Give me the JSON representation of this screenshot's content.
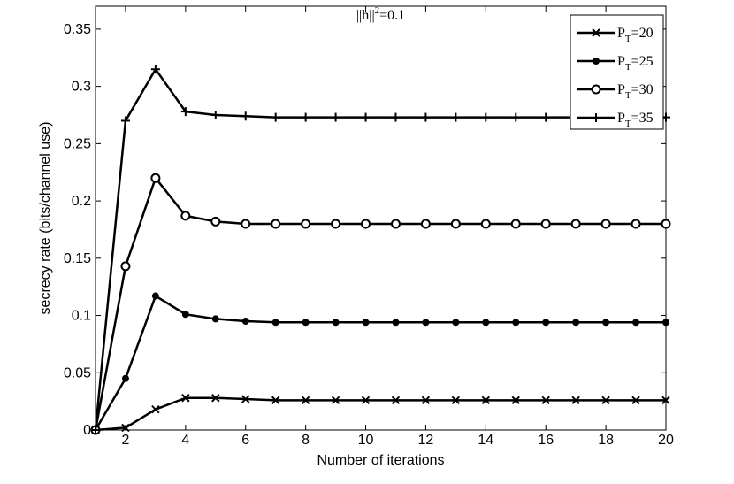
{
  "chart_data": {
    "type": "line",
    "title": "||h||²=0.1",
    "title_main": "||h||",
    "title_sup": "2",
    "title_rest": "=0.1",
    "xlabel": "Number of iterations",
    "ylabel": "secrecy rate (bits/channel use)",
    "xlim": [
      1,
      20
    ],
    "ylim": [
      0,
      0.37
    ],
    "xticks": [
      2,
      4,
      6,
      8,
      10,
      12,
      14,
      16,
      18,
      20
    ],
    "yticks": [
      0,
      0.05,
      0.1,
      0.15,
      0.2,
      0.25,
      0.3,
      0.35
    ],
    "ytick_labels": [
      "0",
      "0.05",
      "0.1",
      "0.15",
      "0.2",
      "0.25",
      "0.3",
      "0.35"
    ],
    "grid": false,
    "legend_position": "top-right",
    "x": [
      1,
      2,
      3,
      4,
      5,
      6,
      7,
      8,
      9,
      10,
      11,
      12,
      13,
      14,
      15,
      16,
      17,
      18,
      19,
      20
    ],
    "series": [
      {
        "name": "P_T=20",
        "legend_main": "P",
        "legend_sub": "T",
        "legend_rest": "=20",
        "marker": "x",
        "values": [
          0,
          0.002,
          0.018,
          0.028,
          0.028,
          0.027,
          0.026,
          0.026,
          0.026,
          0.026,
          0.026,
          0.026,
          0.026,
          0.026,
          0.026,
          0.026,
          0.026,
          0.026,
          0.026,
          0.026
        ]
      },
      {
        "name": "P_T=25",
        "legend_main": "P",
        "legend_sub": "T",
        "legend_rest": "=25",
        "marker": "dot",
        "values": [
          0,
          0.045,
          0.117,
          0.101,
          0.097,
          0.095,
          0.094,
          0.094,
          0.094,
          0.094,
          0.094,
          0.094,
          0.094,
          0.094,
          0.094,
          0.094,
          0.094,
          0.094,
          0.094,
          0.094
        ]
      },
      {
        "name": "P_T=30",
        "legend_main": "P",
        "legend_sub": "T",
        "legend_rest": "=30",
        "marker": "circle",
        "values": [
          0,
          0.143,
          0.22,
          0.187,
          0.182,
          0.18,
          0.18,
          0.18,
          0.18,
          0.18,
          0.18,
          0.18,
          0.18,
          0.18,
          0.18,
          0.18,
          0.18,
          0.18,
          0.18,
          0.18
        ]
      },
      {
        "name": "P_T=35",
        "legend_main": "P",
        "legend_sub": "T",
        "legend_rest": "=35",
        "marker": "plus",
        "values": [
          0,
          0.27,
          0.315,
          0.278,
          0.275,
          0.274,
          0.273,
          0.273,
          0.273,
          0.273,
          0.273,
          0.273,
          0.273,
          0.273,
          0.273,
          0.273,
          0.273,
          0.273,
          0.273,
          0.273
        ]
      }
    ]
  }
}
